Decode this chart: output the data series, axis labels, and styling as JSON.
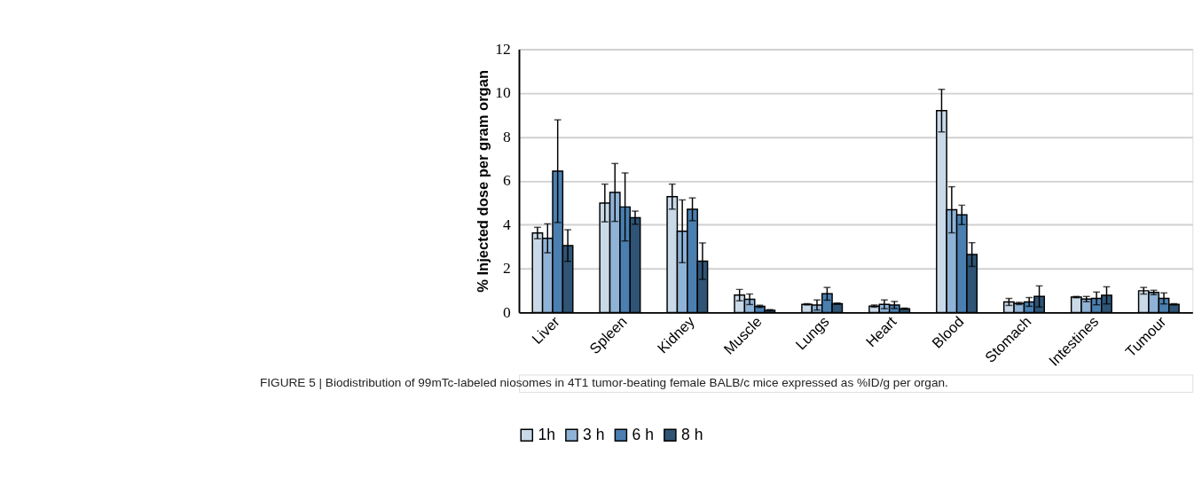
{
  "chart_data": {
    "type": "bar",
    "ylabel": "% Injected dose per gram organ",
    "categories": [
      "Liver",
      "Spleen",
      "Kidney",
      "Muscle",
      "Lungs",
      "Heart",
      "Blood",
      "Stomach",
      "Intestines",
      "Tumour"
    ],
    "series": [
      {
        "name": "1h",
        "color": "#c9d9e8",
        "values": [
          3.62,
          4.99,
          5.28,
          0.79,
          0.37,
          0.29,
          9.2,
          0.48,
          0.7,
          0.99
        ],
        "errors": [
          0.26,
          0.86,
          0.57,
          0.26,
          0.03,
          0.05,
          0.97,
          0.16,
          0.03,
          0.15
        ]
      },
      {
        "name": "3 h",
        "color": "#8fb3d6",
        "values": [
          3.38,
          5.47,
          3.7,
          0.6,
          0.34,
          0.37,
          4.68,
          0.41,
          0.61,
          0.91
        ],
        "errors": [
          0.66,
          1.32,
          1.43,
          0.24,
          0.23,
          0.2,
          1.05,
          0.05,
          0.12,
          0.1
        ]
      },
      {
        "name": "6 h",
        "color": "#4a7fb0",
        "values": [
          6.44,
          4.81,
          4.7,
          0.28,
          0.85,
          0.34,
          4.45,
          0.48,
          0.64,
          0.64
        ],
        "errors": [
          2.34,
          1.55,
          0.52,
          0.05,
          0.29,
          0.16,
          0.44,
          0.2,
          0.29,
          0.25
        ]
      },
      {
        "name": "8 h",
        "color": "#2f5475",
        "values": [
          3.05,
          4.32,
          2.34,
          0.1,
          0.4,
          0.17,
          2.64,
          0.73,
          0.78,
          0.37
        ],
        "errors": [
          0.72,
          0.3,
          0.83,
          0.03,
          0.03,
          0.03,
          0.54,
          0.48,
          0.39,
          0.03
        ]
      }
    ],
    "ylim": [
      0,
      12
    ],
    "yticks": [
      0,
      2,
      4,
      6,
      8,
      10,
      12
    ],
    "grid": "y",
    "legend": "bottom",
    "annotations": [
      "FIGURE 5 | Biodistribution of 99mTc-labeled niosomes in 4T1 tumor-beating female BALB/c mice expressed as %ID/g per organ."
    ]
  }
}
